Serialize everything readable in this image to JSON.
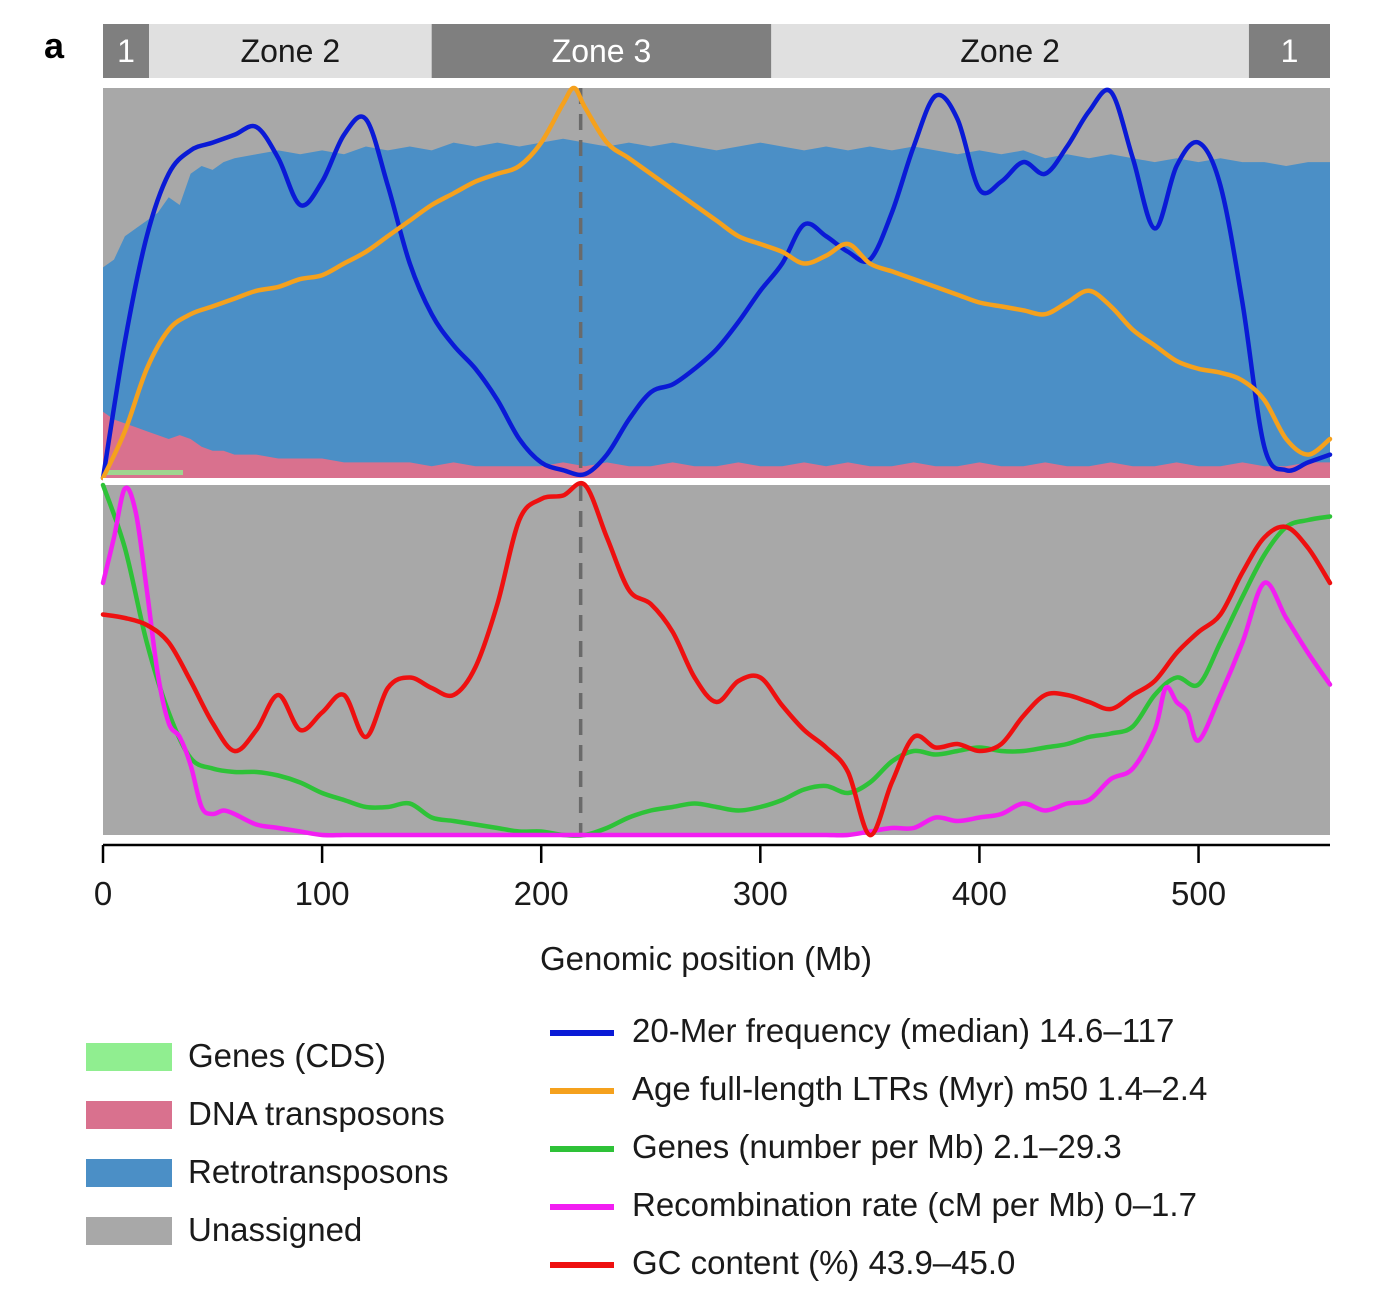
{
  "panel_label": "a",
  "zones": [
    {
      "label": "1",
      "start": 0,
      "end": 21,
      "color": "#7f7f7f",
      "text_color": "#ffffff"
    },
    {
      "label": "Zone 2",
      "start": 21,
      "end": 150,
      "color": "#e0e0e0",
      "text_color": "#1a1a1a"
    },
    {
      "label": "Zone 3",
      "start": 150,
      "end": 305,
      "color": "#7f7f7f",
      "text_color": "#ffffff"
    },
    {
      "label": "Zone 2",
      "start": 305,
      "end": 523,
      "color": "#e0e0e0",
      "text_color": "#1a1a1a"
    },
    {
      "label": "1",
      "start": 523,
      "end": 560,
      "color": "#7f7f7f",
      "text_color": "#ffffff"
    }
  ],
  "chart_data": {
    "type": "area",
    "xlabel": "Genomic position (Mb)",
    "xlim": [
      0,
      560
    ],
    "xticks": [
      0,
      100,
      200,
      300,
      400,
      500
    ],
    "centromere_x": 218,
    "colors": {
      "unassigned": "#a8a8a8",
      "retro": "#4b8fc6",
      "dna": "#d9718e",
      "genes_cds": "#90ee90"
    },
    "composition": {
      "x": [
        0,
        5,
        10,
        15,
        20,
        25,
        30,
        35,
        40,
        45,
        50,
        55,
        60,
        70,
        80,
        90,
        100,
        110,
        120,
        130,
        140,
        150,
        160,
        170,
        180,
        190,
        200,
        210,
        220,
        230,
        240,
        250,
        260,
        270,
        280,
        290,
        300,
        310,
        320,
        330,
        340,
        350,
        360,
        370,
        380,
        390,
        400,
        410,
        420,
        430,
        440,
        450,
        460,
        470,
        480,
        490,
        500,
        510,
        520,
        530,
        540,
        550,
        560
      ],
      "dna_top": [
        0.17,
        0.15,
        0.14,
        0.13,
        0.12,
        0.11,
        0.1,
        0.11,
        0.1,
        0.08,
        0.07,
        0.07,
        0.06,
        0.06,
        0.05,
        0.05,
        0.05,
        0.04,
        0.04,
        0.04,
        0.04,
        0.03,
        0.04,
        0.03,
        0.03,
        0.03,
        0.03,
        0.04,
        0.03,
        0.04,
        0.03,
        0.03,
        0.04,
        0.03,
        0.03,
        0.04,
        0.03,
        0.03,
        0.04,
        0.03,
        0.04,
        0.03,
        0.03,
        0.04,
        0.03,
        0.03,
        0.04,
        0.03,
        0.03,
        0.04,
        0.03,
        0.03,
        0.04,
        0.03,
        0.03,
        0.04,
        0.03,
        0.03,
        0.04,
        0.03,
        0.03,
        0.04,
        0.04
      ],
      "retro_top": [
        0.54,
        0.56,
        0.62,
        0.64,
        0.66,
        0.68,
        0.72,
        0.7,
        0.78,
        0.8,
        0.79,
        0.81,
        0.82,
        0.83,
        0.84,
        0.83,
        0.84,
        0.83,
        0.85,
        0.84,
        0.85,
        0.84,
        0.86,
        0.85,
        0.86,
        0.85,
        0.86,
        0.87,
        0.86,
        0.85,
        0.86,
        0.85,
        0.86,
        0.85,
        0.84,
        0.85,
        0.86,
        0.85,
        0.84,
        0.85,
        0.84,
        0.85,
        0.84,
        0.85,
        0.84,
        0.83,
        0.84,
        0.83,
        0.84,
        0.82,
        0.83,
        0.82,
        0.83,
        0.82,
        0.81,
        0.82,
        0.81,
        0.82,
        0.81,
        0.81,
        0.8,
        0.81,
        0.81
      ]
    },
    "series_top": [
      {
        "name": "20-Mer frequency (median) 14.6–117",
        "color": "#0a1ad6",
        "x": [
          0,
          10,
          20,
          30,
          40,
          50,
          60,
          70,
          80,
          90,
          100,
          110,
          120,
          130,
          140,
          150,
          160,
          170,
          180,
          190,
          200,
          210,
          220,
          230,
          240,
          250,
          260,
          270,
          280,
          290,
          300,
          310,
          320,
          330,
          340,
          350,
          360,
          370,
          380,
          390,
          400,
          410,
          420,
          430,
          440,
          450,
          460,
          470,
          480,
          490,
          500,
          510,
          520,
          530,
          540,
          550,
          560
        ],
        "y": [
          0.0,
          0.35,
          0.62,
          0.78,
          0.84,
          0.86,
          0.88,
          0.9,
          0.82,
          0.7,
          0.76,
          0.88,
          0.92,
          0.75,
          0.55,
          0.42,
          0.34,
          0.28,
          0.2,
          0.1,
          0.04,
          0.02,
          0.01,
          0.06,
          0.15,
          0.22,
          0.24,
          0.28,
          0.33,
          0.4,
          0.48,
          0.55,
          0.65,
          0.62,
          0.58,
          0.56,
          0.68,
          0.85,
          0.98,
          0.92,
          0.74,
          0.76,
          0.81,
          0.78,
          0.85,
          0.94,
          0.99,
          0.82,
          0.64,
          0.8,
          0.86,
          0.75,
          0.45,
          0.08,
          0.02,
          0.04,
          0.06
        ]
      },
      {
        "name": "Age full-length LTRs (Myr) m50 1.4–2.4",
        "color": "#f5a11d",
        "x": [
          0,
          10,
          20,
          30,
          40,
          50,
          60,
          70,
          80,
          90,
          100,
          110,
          120,
          130,
          140,
          150,
          160,
          170,
          180,
          190,
          200,
          210,
          215,
          220,
          230,
          240,
          250,
          260,
          270,
          280,
          290,
          300,
          310,
          320,
          330,
          340,
          350,
          360,
          370,
          380,
          390,
          400,
          410,
          420,
          430,
          440,
          450,
          460,
          470,
          480,
          490,
          500,
          510,
          520,
          530,
          540,
          550,
          560
        ],
        "y": [
          0.0,
          0.12,
          0.28,
          0.38,
          0.42,
          0.44,
          0.46,
          0.48,
          0.49,
          0.51,
          0.52,
          0.55,
          0.58,
          0.62,
          0.66,
          0.7,
          0.73,
          0.76,
          0.78,
          0.8,
          0.86,
          0.96,
          1.0,
          0.95,
          0.86,
          0.82,
          0.78,
          0.74,
          0.7,
          0.66,
          0.62,
          0.6,
          0.58,
          0.55,
          0.57,
          0.6,
          0.55,
          0.53,
          0.51,
          0.49,
          0.47,
          0.45,
          0.44,
          0.43,
          0.42,
          0.45,
          0.48,
          0.44,
          0.38,
          0.34,
          0.3,
          0.28,
          0.27,
          0.25,
          0.2,
          0.1,
          0.06,
          0.1
        ]
      }
    ],
    "series_bottom": [
      {
        "name": "Genes (number per Mb) 2.1–29.3",
        "color": "#2ec238",
        "x": [
          0,
          10,
          20,
          30,
          40,
          50,
          60,
          70,
          80,
          90,
          100,
          110,
          120,
          130,
          140,
          150,
          160,
          170,
          180,
          190,
          200,
          210,
          220,
          230,
          240,
          250,
          260,
          270,
          280,
          290,
          300,
          310,
          320,
          330,
          340,
          350,
          360,
          370,
          380,
          390,
          400,
          410,
          420,
          430,
          440,
          450,
          460,
          470,
          480,
          490,
          500,
          510,
          520,
          530,
          540,
          550,
          560
        ],
        "y": [
          1.0,
          0.82,
          0.55,
          0.35,
          0.22,
          0.19,
          0.18,
          0.18,
          0.17,
          0.15,
          0.12,
          0.1,
          0.08,
          0.08,
          0.09,
          0.05,
          0.04,
          0.03,
          0.02,
          0.01,
          0.01,
          0.0,
          0.0,
          0.02,
          0.05,
          0.07,
          0.08,
          0.09,
          0.08,
          0.07,
          0.08,
          0.1,
          0.13,
          0.14,
          0.12,
          0.15,
          0.21,
          0.24,
          0.23,
          0.24,
          0.25,
          0.24,
          0.24,
          0.25,
          0.26,
          0.28,
          0.29,
          0.31,
          0.4,
          0.45,
          0.43,
          0.55,
          0.68,
          0.8,
          0.88,
          0.9,
          0.91
        ]
      },
      {
        "name": "Recombination rate (cM per Mb) 0–1.7",
        "color": "#f21ef2",
        "x": [
          0,
          5,
          10,
          15,
          20,
          25,
          30,
          35,
          40,
          45,
          50,
          55,
          60,
          70,
          80,
          90,
          100,
          110,
          120,
          130,
          140,
          150,
          160,
          170,
          180,
          190,
          200,
          210,
          220,
          230,
          240,
          250,
          260,
          270,
          280,
          290,
          300,
          310,
          320,
          330,
          340,
          350,
          360,
          370,
          380,
          390,
          400,
          410,
          420,
          430,
          440,
          450,
          460,
          470,
          480,
          485,
          490,
          495,
          500,
          510,
          520,
          530,
          540,
          550,
          560
        ],
        "y": [
          0.72,
          0.85,
          0.99,
          0.92,
          0.7,
          0.46,
          0.32,
          0.28,
          0.2,
          0.08,
          0.06,
          0.07,
          0.06,
          0.03,
          0.02,
          0.01,
          0.0,
          0.0,
          0.0,
          0.0,
          0.0,
          0.0,
          0.0,
          0.0,
          0.0,
          0.0,
          0.0,
          0.0,
          0.0,
          0.0,
          0.0,
          0.0,
          0.0,
          0.0,
          0.0,
          0.0,
          0.0,
          0.0,
          0.0,
          0.0,
          0.0,
          0.01,
          0.02,
          0.02,
          0.05,
          0.04,
          0.05,
          0.06,
          0.09,
          0.07,
          0.09,
          0.1,
          0.16,
          0.19,
          0.3,
          0.42,
          0.38,
          0.35,
          0.27,
          0.4,
          0.55,
          0.72,
          0.62,
          0.52,
          0.43
        ]
      },
      {
        "name": "GC content (%) 43.9–45.0",
        "color": "#ee1010",
        "x": [
          0,
          10,
          20,
          30,
          40,
          50,
          60,
          70,
          80,
          90,
          100,
          110,
          120,
          130,
          140,
          150,
          160,
          170,
          180,
          190,
          200,
          210,
          220,
          230,
          240,
          250,
          260,
          270,
          280,
          290,
          300,
          310,
          320,
          330,
          340,
          350,
          360,
          370,
          380,
          390,
          400,
          410,
          420,
          430,
          440,
          450,
          460,
          470,
          480,
          490,
          500,
          510,
          520,
          530,
          540,
          550,
          560
        ],
        "y": [
          0.63,
          0.62,
          0.6,
          0.55,
          0.44,
          0.32,
          0.24,
          0.3,
          0.4,
          0.3,
          0.35,
          0.4,
          0.28,
          0.42,
          0.45,
          0.42,
          0.4,
          0.48,
          0.66,
          0.9,
          0.96,
          0.97,
          1.0,
          0.85,
          0.7,
          0.66,
          0.58,
          0.45,
          0.38,
          0.44,
          0.45,
          0.37,
          0.3,
          0.25,
          0.18,
          0.0,
          0.15,
          0.28,
          0.25,
          0.26,
          0.24,
          0.26,
          0.34,
          0.4,
          0.4,
          0.38,
          0.36,
          0.4,
          0.44,
          0.52,
          0.58,
          0.63,
          0.75,
          0.85,
          0.88,
          0.82,
          0.72
        ]
      }
    ]
  },
  "legend_areas": [
    {
      "label": "Genes (CDS)",
      "color": "#90ee90"
    },
    {
      "label": "DNA transposons",
      "color": "#d9718e"
    },
    {
      "label": "Retrotransposons",
      "color": "#4b8fc6"
    },
    {
      "label": "Unassigned",
      "color": "#a8a8a8"
    }
  ],
  "legend_lines": [
    {
      "label": "20-Mer frequency (median) 14.6–117",
      "color": "#0a1ad6"
    },
    {
      "label": "Age full-length LTRs (Myr) m50 1.4–2.4",
      "color": "#f5a11d"
    },
    {
      "label": "Genes (number per Mb) 2.1–29.3",
      "color": "#2ec238"
    },
    {
      "label": "Recombination rate (cM per Mb) 0–1.7",
      "color": "#f21ef2"
    },
    {
      "label": "GC content (%) 43.9–45.0",
      "color": "#ee1010"
    }
  ]
}
